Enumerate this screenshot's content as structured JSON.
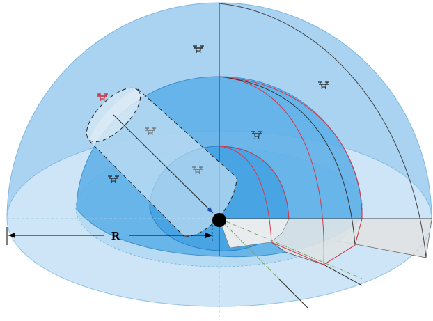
{
  "diagram": {
    "radius_label": "R",
    "colors": {
      "outer_dome": "#a9d3f1",
      "ground_disk": "#cde5f7",
      "middle_dome": "#5aaee8",
      "inner_dome": "#2f96de",
      "cut_face": "#dfe3e6",
      "boundary_red": "#d23a4a",
      "drone_dark": "#222222",
      "drone_red": "#d0202a",
      "center_point": "#000000"
    },
    "drones": [
      {
        "icon": "drone-icon",
        "color": "dark"
      },
      {
        "icon": "drone-icon",
        "color": "dark"
      },
      {
        "icon": "drone-icon",
        "color": "red"
      },
      {
        "icon": "drone-icon",
        "color": "gray"
      },
      {
        "icon": "drone-icon",
        "color": "dark"
      },
      {
        "icon": "drone-icon",
        "color": "dark"
      },
      {
        "icon": "drone-icon",
        "color": "gray"
      }
    ]
  }
}
